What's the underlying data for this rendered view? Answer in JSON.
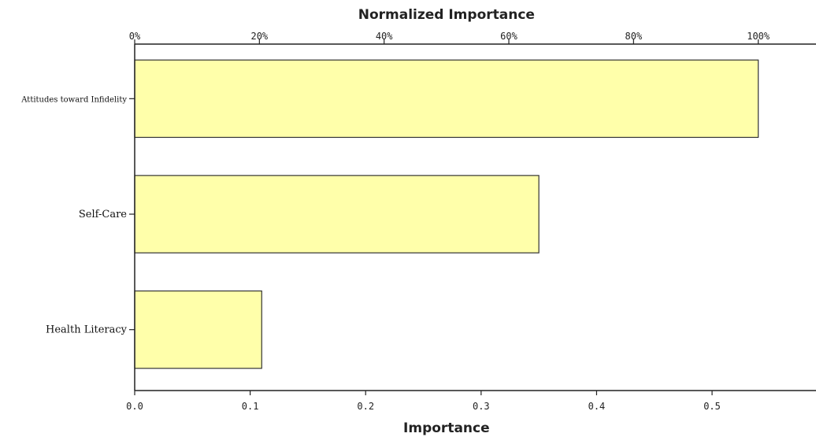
{
  "chart_data": {
    "type": "bar",
    "orientation": "horizontal",
    "categories": [
      "Attitudes toward Infidelity",
      "Self-Care",
      "Health Literacy"
    ],
    "values": [
      0.54,
      0.35,
      0.11
    ],
    "xlabel": "Importance",
    "x2label": "Normalized Importance",
    "xlim": [
      0,
      0.59
    ],
    "xticks": [
      {
        "value": 0.0,
        "label": "0.0"
      },
      {
        "value": 0.1,
        "label": "0.1"
      },
      {
        "value": 0.2,
        "label": "0.2"
      },
      {
        "value": 0.3,
        "label": "0.3"
      },
      {
        "value": 0.4,
        "label": "0.4"
      },
      {
        "value": 0.5,
        "label": "0.5"
      }
    ],
    "x2ticks": [
      {
        "value": 0,
        "label": "0%"
      },
      {
        "value": 20,
        "label": "20%"
      },
      {
        "value": 40,
        "label": "40%"
      },
      {
        "value": 60,
        "label": "60%"
      },
      {
        "value": 80,
        "label": "80%"
      },
      {
        "value": 100,
        "label": "100%"
      }
    ],
    "x2_max_value": 0.54,
    "bar_color": "#ffffaa",
    "grid": false,
    "legend": "none"
  }
}
